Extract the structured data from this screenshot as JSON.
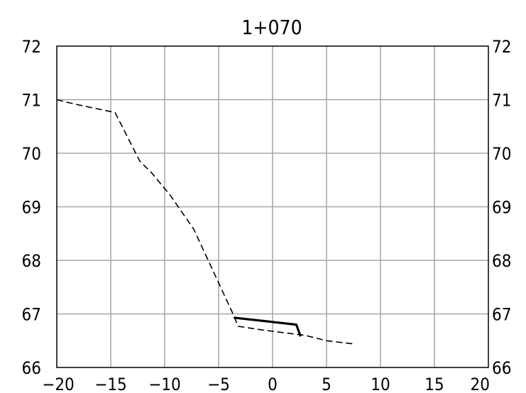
{
  "chart_data": {
    "type": "line",
    "title": "1+070",
    "xlabel": "",
    "ylabel": "",
    "xlim": [
      -20,
      20
    ],
    "ylim": [
      66,
      72
    ],
    "x_ticks": [
      "−20",
      "−15",
      "−10",
      "−5",
      "0",
      "5",
      "10",
      "15",
      "20"
    ],
    "y_ticks": [
      "66",
      "67",
      "68",
      "69",
      "70",
      "71",
      "72"
    ],
    "grid": true,
    "legend": "none",
    "series": [
      {
        "style": "dashed",
        "color": "#000000",
        "points": [
          [
            -20.0,
            71.0
          ],
          [
            -18.4,
            70.92
          ],
          [
            -14.6,
            70.76
          ],
          [
            -12.3,
            69.85
          ],
          [
            -11.2,
            69.63
          ],
          [
            -9.5,
            69.22
          ],
          [
            -7.3,
            68.58
          ],
          [
            -6.2,
            68.1
          ],
          [
            -3.6,
            66.97
          ],
          [
            -3.2,
            66.77
          ],
          [
            -1.0,
            66.7
          ],
          [
            1.0,
            66.65
          ],
          [
            3.0,
            66.6
          ],
          [
            5.0,
            66.5
          ],
          [
            7.5,
            66.44
          ]
        ]
      },
      {
        "style": "solid",
        "color": "#000000",
        "points": [
          [
            -3.6,
            66.93
          ],
          [
            2.2,
            66.8
          ],
          [
            2.6,
            66.58
          ]
        ]
      }
    ]
  }
}
